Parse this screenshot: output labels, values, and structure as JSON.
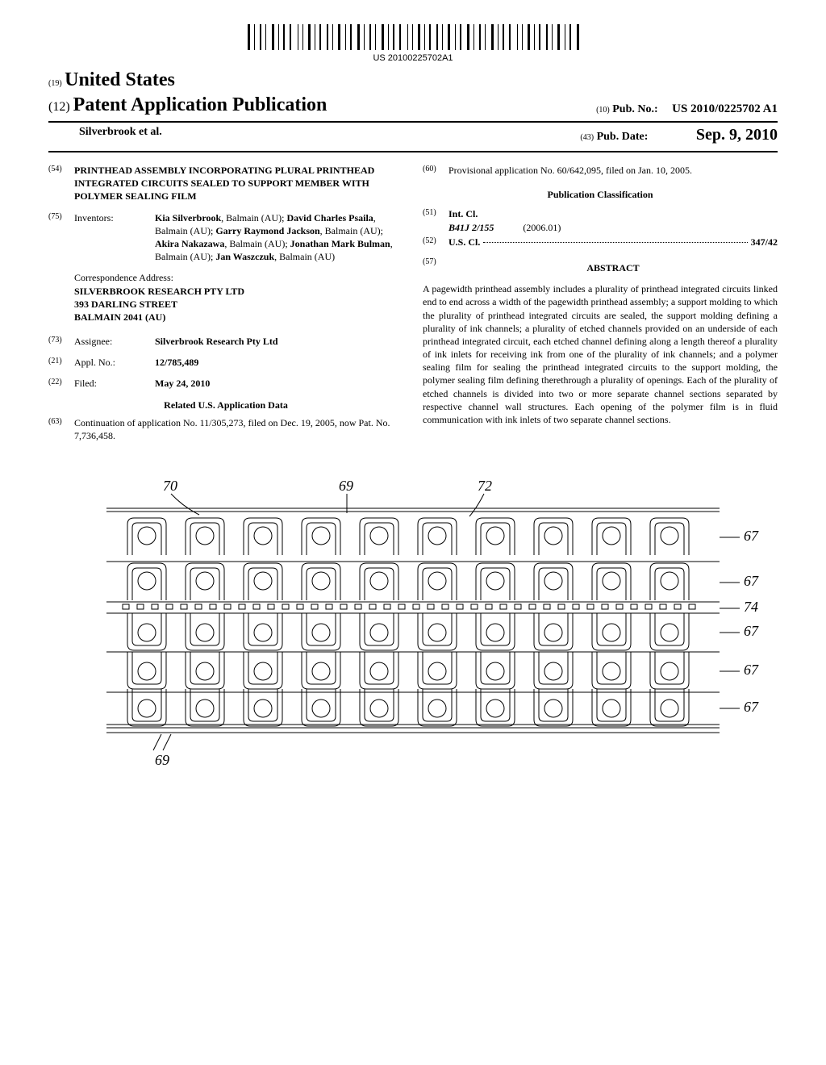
{
  "barcode_text": "US 20100225702A1",
  "country_code": "(19)",
  "country_name": "United States",
  "pub_type_code": "(12)",
  "pub_type": "Patent Application Publication",
  "authors_short": "Silverbrook et al.",
  "pub_no_code": "(10)",
  "pub_no_label": "Pub. No.:",
  "pub_no_value": "US 2010/0225702 A1",
  "pub_date_code": "(43)",
  "pub_date_label": "Pub. Date:",
  "pub_date_value": "Sep. 9, 2010",
  "title_code": "(54)",
  "title": "PRINTHEAD ASSEMBLY INCORPORATING PLURAL PRINTHEAD INTEGRATED CIRCUITS SEALED TO SUPPORT MEMBER WITH POLYMER SEALING FILM",
  "inventors_code": "(75)",
  "inventors_label": "Inventors:",
  "inventors_html": "<b>Kia Silverbrook</b>, Balmain (AU); <b>David Charles Psaila</b>, Balmain (AU); <b>Garry Raymond Jackson</b>, Balmain (AU); <b>Akira Nakazawa</b>, Balmain (AU); <b>Jonathan Mark Bulman</b>, Balmain (AU); <b>Jan Waszczuk</b>, Balmain (AU)",
  "corr_label": "Correspondence Address:",
  "corr_name": "SILVERBROOK RESEARCH PTY LTD",
  "corr_street": "393 DARLING STREET",
  "corr_city": "BALMAIN 2041 (AU)",
  "assignee_code": "(73)",
  "assignee_label": "Assignee:",
  "assignee_value": "Silverbrook Research Pty Ltd",
  "appl_no_code": "(21)",
  "appl_no_label": "Appl. No.:",
  "appl_no_value": "12/785,489",
  "filed_code": "(22)",
  "filed_label": "Filed:",
  "filed_value": "May 24, 2010",
  "related_header": "Related U.S. Application Data",
  "continuation_code": "(63)",
  "continuation_text": "Continuation of application No. 11/305,273, filed on Dec. 19, 2005, now Pat. No. 7,736,458.",
  "provisional_code": "(60)",
  "provisional_text": "Provisional application No. 60/642,095, filed on Jan. 10, 2005.",
  "pub_class_header": "Publication Classification",
  "intcl_code": "(51)",
  "intcl_label": "Int. Cl.",
  "intcl_class": "B41J 2/155",
  "intcl_date": "(2006.01)",
  "uscl_code": "(52)",
  "uscl_label": "U.S. Cl.",
  "uscl_value": "347/42",
  "abstract_code": "(57)",
  "abstract_label": "ABSTRACT",
  "abstract_text": "A pagewidth printhead assembly includes a plurality of printhead integrated circuits linked end to end across a width of the pagewidth printhead assembly; a support molding to which the plurality of printhead integrated circuits are sealed, the support molding defining a plurality of ink channels; a plurality of etched channels provided on an underside of each printhead integrated circuit, each etched channel defining along a length thereof a plurality of ink inlets for receiving ink from one of the plurality of ink channels; and a polymer sealing film for sealing the printhead integrated circuits to the support molding, the polymer sealing film defining therethrough a plurality of openings. Each of the plurality of etched channels is divided into two or more separate channel sections separated by respective channel wall structures. Each opening of the polymer film is in fluid communication with ink inlets of two separate channel sections.",
  "figure": {
    "ref_70": "70",
    "ref_69": "69",
    "ref_72": "72",
    "ref_67": "67",
    "ref_74": "74",
    "rows": 5,
    "cols": 10,
    "stroke_color": "#000000",
    "stroke_width": 1
  }
}
